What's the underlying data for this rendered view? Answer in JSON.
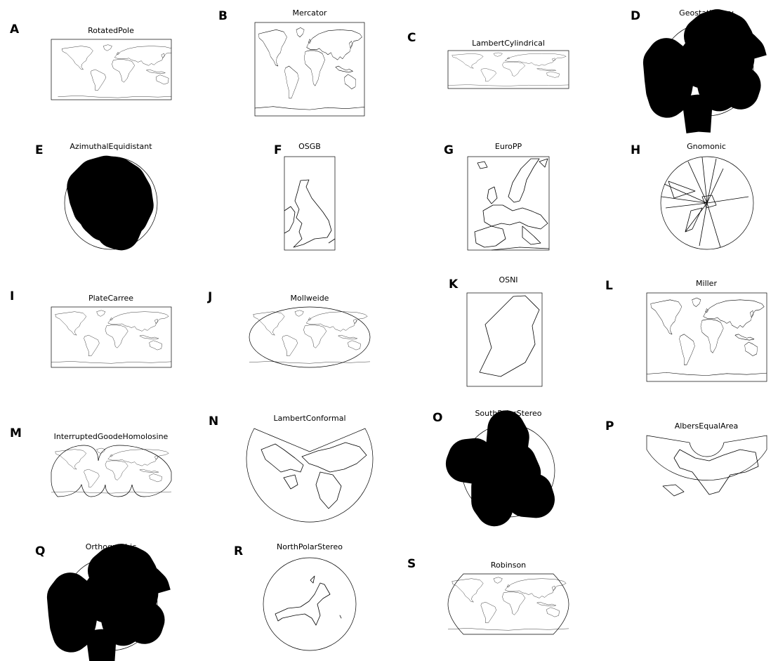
{
  "figure": {
    "panels": [
      {
        "letter": "A",
        "title": "RotatedPole"
      },
      {
        "letter": "B",
        "title": "Mercator"
      },
      {
        "letter": "C",
        "title": "LambertCylindrical"
      },
      {
        "letter": "D",
        "title": "Geostationary"
      },
      {
        "letter": "E",
        "title": "AzimuthalEquidistant"
      },
      {
        "letter": "F",
        "title": "OSGB"
      },
      {
        "letter": "G",
        "title": "EuroPP"
      },
      {
        "letter": "H",
        "title": "Gnomonic"
      },
      {
        "letter": "I",
        "title": "PlateCarree"
      },
      {
        "letter": "J",
        "title": "Mollweide"
      },
      {
        "letter": "K",
        "title": "OSNI"
      },
      {
        "letter": "L",
        "title": "Miller"
      },
      {
        "letter": "M",
        "title": "InterruptedGoodeHomolosine"
      },
      {
        "letter": "N",
        "title": "LambertConformal"
      },
      {
        "letter": "O",
        "title": "SouthPolarStereo"
      },
      {
        "letter": "P",
        "title": "AlbersEqualArea"
      },
      {
        "letter": "Q",
        "title": "Orthographic"
      },
      {
        "letter": "R",
        "title": "NorthPolarStereo"
      },
      {
        "letter": "S",
        "title": "Robinson"
      }
    ]
  }
}
